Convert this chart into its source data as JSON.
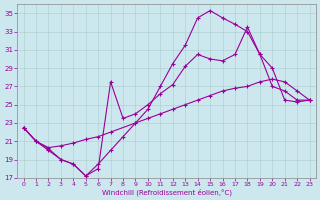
{
  "xlabel": "Windchill (Refroidissement éolien,°C)",
  "bg_color": "#cce8ee",
  "line_color": "#990099",
  "xlim": [
    -0.5,
    23.5
  ],
  "ylim": [
    17,
    36
  ],
  "yticks": [
    17,
    19,
    21,
    23,
    25,
    27,
    29,
    31,
    33,
    35
  ],
  "xticks": [
    0,
    1,
    2,
    3,
    4,
    5,
    6,
    7,
    8,
    9,
    10,
    11,
    12,
    13,
    14,
    15,
    16,
    17,
    18,
    19,
    20,
    21,
    22,
    23
  ],
  "line1_x": [
    0,
    1,
    2,
    3,
    4,
    5,
    6,
    7,
    9,
    10,
    11,
    12,
    13,
    14,
    15,
    16,
    17,
    18,
    19,
    20,
    21,
    22,
    23
  ],
  "line1_y": [
    22.5,
    21.0,
    20.3,
    20.5,
    20.8,
    21.2,
    21.5,
    22.0,
    23.0,
    23.5,
    24.0,
    24.5,
    25.0,
    25.5,
    26.0,
    26.5,
    26.8,
    27.0,
    27.5,
    27.8,
    27.5,
    26.5,
    25.5
  ],
  "line2_x": [
    0,
    1,
    2,
    3,
    4,
    5,
    6,
    7,
    8,
    9,
    10,
    11,
    12,
    13,
    14,
    15,
    16,
    17,
    18,
    19,
    20,
    21,
    22,
    23
  ],
  "line2_y": [
    22.5,
    21.0,
    20.0,
    19.0,
    18.5,
    17.2,
    18.5,
    20.0,
    21.5,
    23.0,
    24.5,
    27.0,
    29.5,
    31.5,
    34.5,
    35.3,
    34.5,
    33.8,
    33.0,
    30.5,
    29.0,
    25.5,
    25.3,
    25.5
  ],
  "line3_x": [
    0,
    1,
    2,
    3,
    4,
    5,
    6,
    7,
    8,
    9,
    10,
    11,
    12,
    13,
    14,
    15,
    16,
    17,
    18,
    19,
    20,
    21,
    22,
    23
  ],
  "line3_y": [
    22.5,
    21.0,
    20.2,
    19.0,
    18.5,
    17.2,
    18.0,
    27.5,
    23.5,
    24.0,
    25.0,
    26.2,
    27.2,
    29.2,
    30.5,
    30.0,
    29.8,
    30.5,
    33.5,
    30.5,
    27.0,
    26.5,
    25.5,
    25.5
  ]
}
